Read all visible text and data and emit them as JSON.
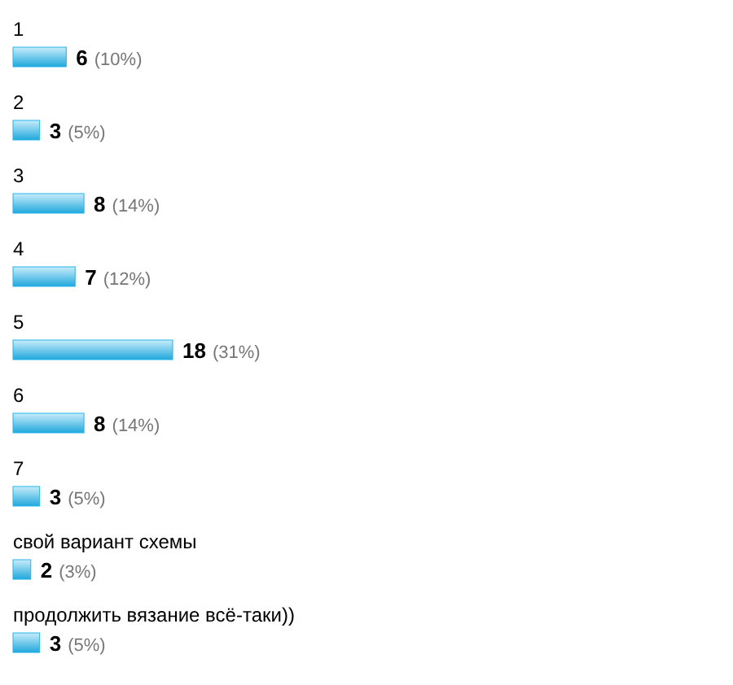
{
  "chart_data": {
    "type": "bar",
    "orientation": "horizontal",
    "categories": [
      "1",
      "2",
      "3",
      "4",
      "5",
      "6",
      "7",
      "свой вариант схемы",
      "продолжить вязание всё-таки))"
    ],
    "values": [
      6,
      3,
      8,
      7,
      18,
      8,
      3,
      2,
      3
    ],
    "value_labels": [
      "6 (10%)",
      "3 (5%)",
      "8 (14%)",
      "7 (12%)",
      "18 (31%)",
      "8 (14%)",
      "3 (5%)",
      "2 (3%)",
      "3 (5%)"
    ],
    "color": "#22b4ec"
  }
}
